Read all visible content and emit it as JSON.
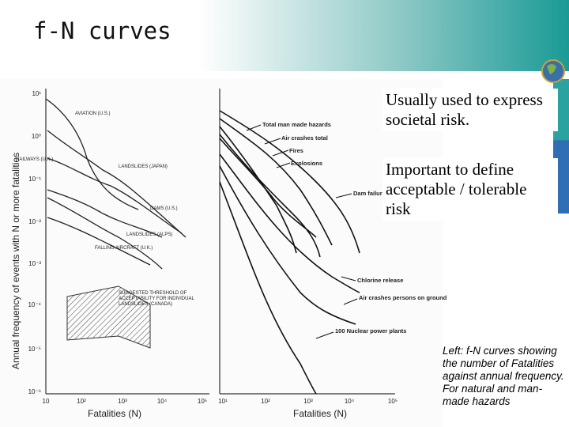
{
  "header": {
    "title": "f-N curves"
  },
  "figure": {
    "left": {
      "y_label": "Annual frequency of events with N or more fatalities",
      "x_label": "Fatalities (N)",
      "yticks": [
        "10¹",
        "10⁰",
        "10⁻¹",
        "10⁻²",
        "10⁻³",
        "10⁻⁴",
        "10⁻⁵",
        "10⁻⁶"
      ],
      "xticks": [
        "10",
        "10²",
        "10³",
        "10⁴",
        "10⁵"
      ],
      "curve_labels": [
        "AVIATION (U.S.)",
        "RAILWAYS (U.K.)",
        "LANDSLIDES (JAPAN)",
        "DAMS (U.S.)",
        "LANDSLIDES (ALPS)",
        "FALLING AIRCRAFT (U.K.)"
      ],
      "threshold_label": [
        "SUGGESTED THRESHOLD OF",
        "ACCEPTABILITY FOR INDIVIDUAL",
        "LANDSLIDES (CANADA)"
      ]
    },
    "right": {
      "x_label": "Fatalities (N)",
      "xticks": [
        "10¹",
        "10²",
        "10³",
        "10⁴",
        "10⁵"
      ],
      "curve_labels": [
        "Total man made hazards",
        "Air crashes total",
        "Fires",
        "Explosions",
        "Dam failures",
        "Chlorine release",
        "Air crashes persons on ground",
        "100 Nuclear power plants"
      ]
    }
  },
  "text_boxes": [
    "Usually used to express societal risk.",
    "Important to define acceptable / tolerable risk"
  ],
  "caption": "Left: f-N curves showing the number of Fatalities against annual  frequency. For natural and man-made hazards"
}
